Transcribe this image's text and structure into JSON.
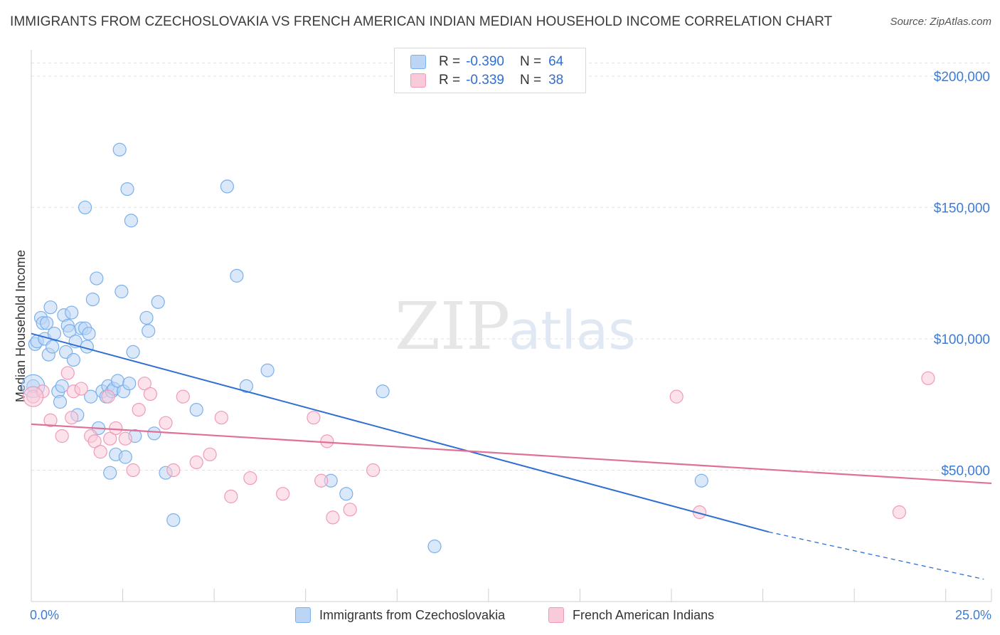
{
  "title": "IMMIGRANTS FROM CZECHOSLOVAKIA VS FRENCH AMERICAN INDIAN MEDIAN HOUSEHOLD INCOME CORRELATION CHART",
  "source": "Source: ZipAtlas.com",
  "watermark": {
    "zip": "ZIP",
    "atlas": "atlas"
  },
  "legend": {
    "rows": [
      {
        "r_label": "R =",
        "r_value": "-0.390",
        "n_label": "N =",
        "n_value": "64",
        "color": "#7ab0ec",
        "fill": "#bcd5f5"
      },
      {
        "r_label": "R =",
        "r_value": "-0.339",
        "n_label": "N =",
        "n_value": "38",
        "color": "#ef9bb8",
        "fill": "#f9cad9"
      }
    ]
  },
  "bottom_legend": {
    "series1": "Immigrants from Czechoslovakia",
    "series2": "French American Indians"
  },
  "chart_data": {
    "type": "scatter",
    "title": "IMMIGRANTS FROM CZECHOSLOVAKIA VS FRENCH AMERICAN INDIAN MEDIAN HOUSEHOLD INCOME CORRELATION CHART",
    "xlabel": "",
    "ylabel": "Median Household Income",
    "xlim": [
      0,
      25
    ],
    "ylim": [
      0,
      210000
    ],
    "x_tick_labels": [
      "0.0%",
      "25.0%"
    ],
    "y_tick_values": [
      50000,
      100000,
      150000,
      200000
    ],
    "y_tick_labels": [
      "$50,000",
      "$100,000",
      "$150,000",
      "$200,000"
    ],
    "grid": true,
    "series": [
      {
        "name": "Immigrants from Czechoslovakia",
        "color": "#7ab0ec",
        "fill": "#bcd5f5",
        "line_color": "#2f6fd1",
        "trend": {
          "x0": 0,
          "y0": 102000,
          "x1": 19.2,
          "y1": 26500,
          "dash_to_x": 24.8,
          "dash_to_y": 8500
        },
        "points": [
          [
            0.05,
            82000
          ],
          [
            0.1,
            98000
          ],
          [
            0.15,
            99000
          ],
          [
            0.25,
            108000
          ],
          [
            0.3,
            106000
          ],
          [
            0.35,
            100000
          ],
          [
            0.4,
            106000
          ],
          [
            0.45,
            94000
          ],
          [
            0.5,
            112000
          ],
          [
            0.55,
            97000
          ],
          [
            0.6,
            102000
          ],
          [
            0.7,
            80000
          ],
          [
            0.75,
            76000
          ],
          [
            0.8,
            82000
          ],
          [
            0.85,
            109000
          ],
          [
            0.9,
            95000
          ],
          [
            0.95,
            105000
          ],
          [
            1.0,
            103000
          ],
          [
            1.05,
            110000
          ],
          [
            1.1,
            92000
          ],
          [
            1.15,
            99000
          ],
          [
            1.2,
            71000
          ],
          [
            1.3,
            104000
          ],
          [
            1.4,
            104000
          ],
          [
            1.45,
            97000
          ],
          [
            1.5,
            102000
          ],
          [
            1.55,
            78000
          ],
          [
            1.6,
            115000
          ],
          [
            1.7,
            123000
          ],
          [
            1.75,
            66000
          ],
          [
            1.85,
            80000
          ],
          [
            1.95,
            78000
          ],
          [
            2.0,
            82000
          ],
          [
            2.05,
            49000
          ],
          [
            2.1,
            80000
          ],
          [
            2.15,
            81000
          ],
          [
            2.2,
            56000
          ],
          [
            2.25,
            84000
          ],
          [
            2.3,
            172000
          ],
          [
            2.35,
            118000
          ],
          [
            2.4,
            80000
          ],
          [
            2.45,
            55000
          ],
          [
            2.5,
            157000
          ],
          [
            2.55,
            83000
          ],
          [
            2.6,
            145000
          ],
          [
            2.7,
            63000
          ],
          [
            2.65,
            95000
          ],
          [
            3.0,
            108000
          ],
          [
            3.05,
            103000
          ],
          [
            3.2,
            64000
          ],
          [
            3.3,
            114000
          ],
          [
            3.5,
            49000
          ],
          [
            3.7,
            31000
          ],
          [
            1.4,
            150000
          ],
          [
            4.3,
            73000
          ],
          [
            5.1,
            158000
          ],
          [
            5.35,
            124000
          ],
          [
            5.6,
            82000
          ],
          [
            6.15,
            88000
          ],
          [
            7.8,
            46000
          ],
          [
            8.2,
            41000
          ],
          [
            9.15,
            80000
          ],
          [
            10.5,
            21000
          ],
          [
            17.45,
            46000
          ]
        ]
      },
      {
        "name": "French American Indians",
        "color": "#ef9bb8",
        "fill": "#f9cad9",
        "line_color": "#e0709a",
        "trend": {
          "x0": 0,
          "y0": 67500,
          "x1": 25,
          "y1": 45000
        },
        "points": [
          [
            0.05,
            78000
          ],
          [
            0.3,
            80000
          ],
          [
            0.5,
            69000
          ],
          [
            0.8,
            63000
          ],
          [
            0.95,
            87000
          ],
          [
            1.05,
            70000
          ],
          [
            1.1,
            80000
          ],
          [
            1.3,
            81000
          ],
          [
            1.55,
            63000
          ],
          [
            1.65,
            61000
          ],
          [
            1.8,
            57000
          ],
          [
            2.0,
            78000
          ],
          [
            2.05,
            62000
          ],
          [
            2.2,
            66000
          ],
          [
            2.45,
            62000
          ],
          [
            2.65,
            50000
          ],
          [
            2.8,
            73000
          ],
          [
            2.95,
            83000
          ],
          [
            3.1,
            79000
          ],
          [
            3.5,
            68000
          ],
          [
            3.7,
            50000
          ],
          [
            3.95,
            78000
          ],
          [
            4.3,
            53000
          ],
          [
            4.65,
            56000
          ],
          [
            4.95,
            70000
          ],
          [
            5.2,
            40000
          ],
          [
            5.7,
            47000
          ],
          [
            6.55,
            41000
          ],
          [
            7.35,
            70000
          ],
          [
            7.55,
            46000
          ],
          [
            7.85,
            32000
          ],
          [
            7.7,
            61000
          ],
          [
            8.3,
            35000
          ],
          [
            8.9,
            50000
          ],
          [
            16.8,
            78000
          ],
          [
            17.4,
            34000
          ],
          [
            22.6,
            34000
          ],
          [
            23.35,
            85000
          ]
        ]
      }
    ]
  }
}
